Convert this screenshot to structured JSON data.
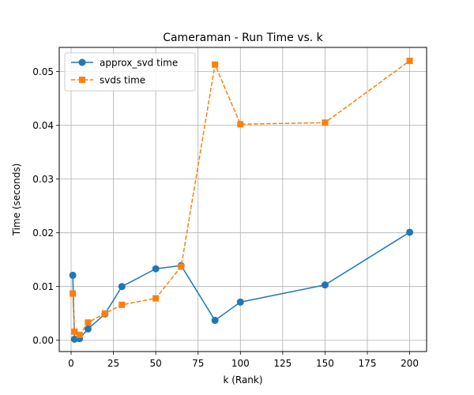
{
  "chart_data": {
    "type": "line",
    "title": "Cameraman - Run Time vs. k",
    "xlabel": "k (Rank)",
    "ylabel": "Time (seconds)",
    "xlim": [
      -7,
      210
    ],
    "ylim": [
      -0.0021,
      0.0545
    ],
    "xticks": [
      0,
      25,
      50,
      75,
      100,
      125,
      150,
      175,
      200
    ],
    "xtick_labels": [
      "0",
      "25",
      "50",
      "75",
      "100",
      "125",
      "150",
      "175",
      "200"
    ],
    "yticks": [
      0.0,
      0.01,
      0.02,
      0.03,
      0.04,
      0.05
    ],
    "ytick_labels": [
      "0.00",
      "0.01",
      "0.02",
      "0.03",
      "0.04",
      "0.05"
    ],
    "grid": true,
    "legend_position": "top-left",
    "series": [
      {
        "name": "approx_svd time",
        "color": "#1f77b4",
        "marker": "circle",
        "linestyle": "solid",
        "x": [
          1,
          2,
          5,
          10,
          20,
          30,
          50,
          65,
          85,
          100,
          150,
          200
        ],
        "y": [
          0.0121,
          0.0002,
          0.0003,
          0.0021,
          0.0049,
          0.01,
          0.0133,
          0.0139,
          0.0037,
          0.0071,
          0.0103,
          0.0201
        ]
      },
      {
        "name": "svds time",
        "color": "#ff7f0e",
        "marker": "square",
        "linestyle": "dashed",
        "x": [
          1,
          2,
          5,
          10,
          20,
          30,
          50,
          65,
          85,
          100,
          150,
          200
        ],
        "y": [
          0.0087,
          0.0016,
          0.001,
          0.0033,
          0.005,
          0.0066,
          0.0078,
          0.0137,
          0.0513,
          0.0402,
          0.0405,
          0.052
        ]
      }
    ]
  }
}
